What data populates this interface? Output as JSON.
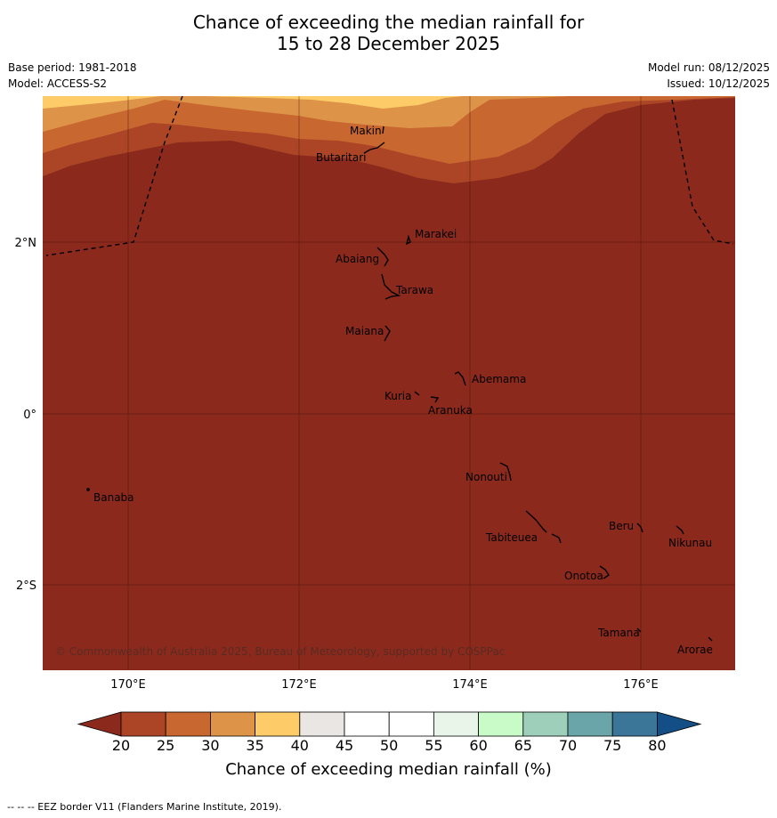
{
  "title_line1": "Chance of exceeding the median rainfall for",
  "title_line2": "15 to 28 December 2025",
  "base_period": "Base period: 1981-2018",
  "model": "Model: ACCESS-S2",
  "model_run": "Model run: 08/12/2025",
  "issued": "Issued: 10/12/2025",
  "lon_labels": [
    "170°E",
    "172°E",
    "174°E",
    "176°E"
  ],
  "lat_labels": [
    "2°N",
    "0°",
    "2°S"
  ],
  "places": [
    "Makin",
    "Butaritari",
    "Marakei",
    "Abaiang",
    "Tarawa",
    "Maiana",
    "Abemama",
    "Kuria",
    "Aranuka",
    "Nonouti",
    "Banaba",
    "Beru",
    "Nikunau",
    "Tabiteuea",
    "Onotoa",
    "Tamana",
    "Arorae"
  ],
  "copyright": "© Commonwealth of Australia 2025, Bureau of Meteorology, supported by COSPPac",
  "colorbar": {
    "label": "Chance of exceeding median rainfall (%)",
    "ticks": [
      "20",
      "25",
      "30",
      "35",
      "40",
      "45",
      "50",
      "55",
      "60",
      "65",
      "70",
      "75",
      "80"
    ],
    "colors": [
      "#8b2a1c",
      "#ab4526",
      "#c96730",
      "#de9448",
      "#fdcc68",
      "#e9e6e3",
      "#ffffff",
      "#ffffff",
      "#eaf5ea",
      "#c9fbc9",
      "#9dcfbb",
      "#6aa6a9",
      "#3b7699",
      "#144e86"
    ]
  },
  "footnote": "-- -- -- EEZ border V11 (Flanders Marine Institute, 2019)."
}
